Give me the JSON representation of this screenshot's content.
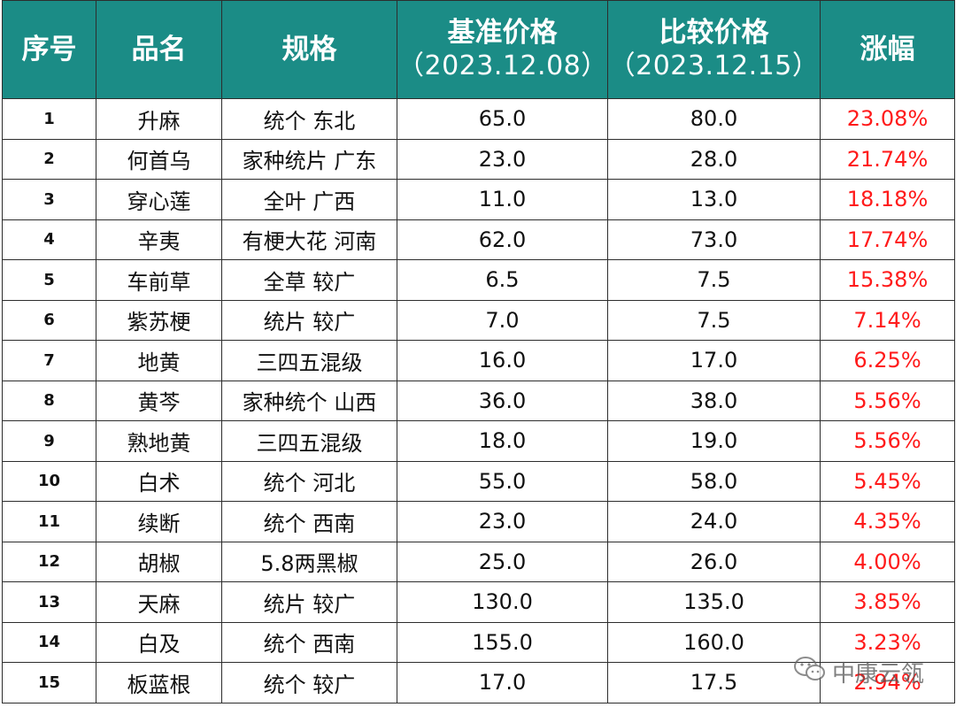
{
  "header": {
    "col_index": "序号",
    "col_name": "品名",
    "col_spec": "规格",
    "col_base_label": "基准价格",
    "col_base_date": "（2023.12.08）",
    "col_compare_label": "比较价格",
    "col_compare_date": "（2023.12.15）",
    "col_change": "涨幅"
  },
  "rows": [
    {
      "idx": "1",
      "name": "升麻",
      "spec": "统个 东北",
      "base": "65.0",
      "compare": "80.0",
      "change": "23.08%"
    },
    {
      "idx": "2",
      "name": "何首乌",
      "spec": "家种统片 广东",
      "base": "23.0",
      "compare": "28.0",
      "change": "21.74%"
    },
    {
      "idx": "3",
      "name": "穿心莲",
      "spec": "全叶 广西",
      "base": "11.0",
      "compare": "13.0",
      "change": "18.18%"
    },
    {
      "idx": "4",
      "name": "辛夷",
      "spec": "有梗大花 河南",
      "base": "62.0",
      "compare": "73.0",
      "change": "17.74%"
    },
    {
      "idx": "5",
      "name": "车前草",
      "spec": "全草 较广",
      "base": "6.5",
      "compare": "7.5",
      "change": "15.38%"
    },
    {
      "idx": "6",
      "name": "紫苏梗",
      "spec": "统片 较广",
      "base": "7.0",
      "compare": "7.5",
      "change": "7.14%"
    },
    {
      "idx": "7",
      "name": "地黄",
      "spec": "三四五混级",
      "base": "16.0",
      "compare": "17.0",
      "change": "6.25%"
    },
    {
      "idx": "8",
      "name": "黄芩",
      "spec": "家种统个 山西",
      "base": "36.0",
      "compare": "38.0",
      "change": "5.56%"
    },
    {
      "idx": "9",
      "name": "熟地黄",
      "spec": "三四五混级",
      "base": "18.0",
      "compare": "19.0",
      "change": "5.56%"
    },
    {
      "idx": "10",
      "name": "白术",
      "spec": "统个 河北",
      "base": "55.0",
      "compare": "58.0",
      "change": "5.45%"
    },
    {
      "idx": "11",
      "name": "续断",
      "spec": "统个 西南",
      "base": "23.0",
      "compare": "24.0",
      "change": "4.35%"
    },
    {
      "idx": "12",
      "name": "胡椒",
      "spec": "5.8两黑椒",
      "base": "25.0",
      "compare": "26.0",
      "change": "4.00%"
    },
    {
      "idx": "13",
      "name": "天麻",
      "spec": "统片 较广",
      "base": "130.0",
      "compare": "135.0",
      "change": "3.85%"
    },
    {
      "idx": "14",
      "name": "白及",
      "spec": "统个 西南",
      "base": "155.0",
      "compare": "160.0",
      "change": "3.23%"
    },
    {
      "idx": "15",
      "name": "板蓝根",
      "spec": "统个 较广",
      "base": "17.0",
      "compare": "17.5",
      "change": "2.94%"
    }
  ],
  "watermark": {
    "text": "中康云瓴",
    "icon": "wechat-icon"
  },
  "colors": {
    "header_bg": "#1b8c86",
    "change_text": "#ff1a1a",
    "border": "#2d2d2d"
  }
}
